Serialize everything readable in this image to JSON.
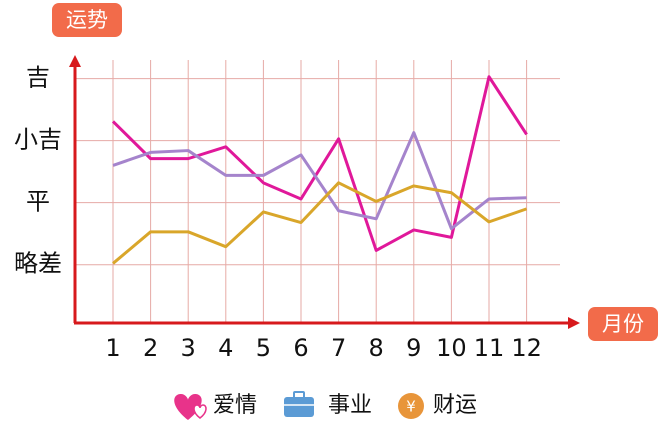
{
  "chart_data": {
    "type": "line",
    "y_label": "运势",
    "x_label": "月份",
    "categories": [
      "1",
      "2",
      "3",
      "4",
      "5",
      "6",
      "7",
      "8",
      "9",
      "10",
      "11",
      "12"
    ],
    "ylim": [
      0.06,
      4.3
    ],
    "yticks": [
      {
        "value": 1,
        "label": "略差"
      },
      {
        "value": 2,
        "label": "平"
      },
      {
        "value": 3,
        "label": "小吉"
      },
      {
        "value": 4,
        "label": "吉"
      }
    ],
    "grid": true,
    "series": [
      {
        "name": "爱情",
        "color": "#e0189a",
        "values": [
          3.31,
          2.71,
          2.71,
          2.9,
          2.32,
          2.06,
          3.03,
          1.23,
          1.56,
          1.44,
          4.03,
          3.1
        ]
      },
      {
        "name": "事业",
        "color": "#a584cc",
        "values": [
          2.6,
          2.81,
          2.84,
          2.44,
          2.44,
          2.77,
          1.87,
          1.74,
          3.13,
          1.58,
          2.06,
          2.08
        ]
      },
      {
        "name": "财运",
        "color": "#d9a62a",
        "values": [
          1.02,
          1.53,
          1.53,
          1.29,
          1.85,
          1.68,
          2.32,
          2.02,
          2.27,
          2.16,
          1.69,
          1.9
        ]
      }
    ]
  }
}
